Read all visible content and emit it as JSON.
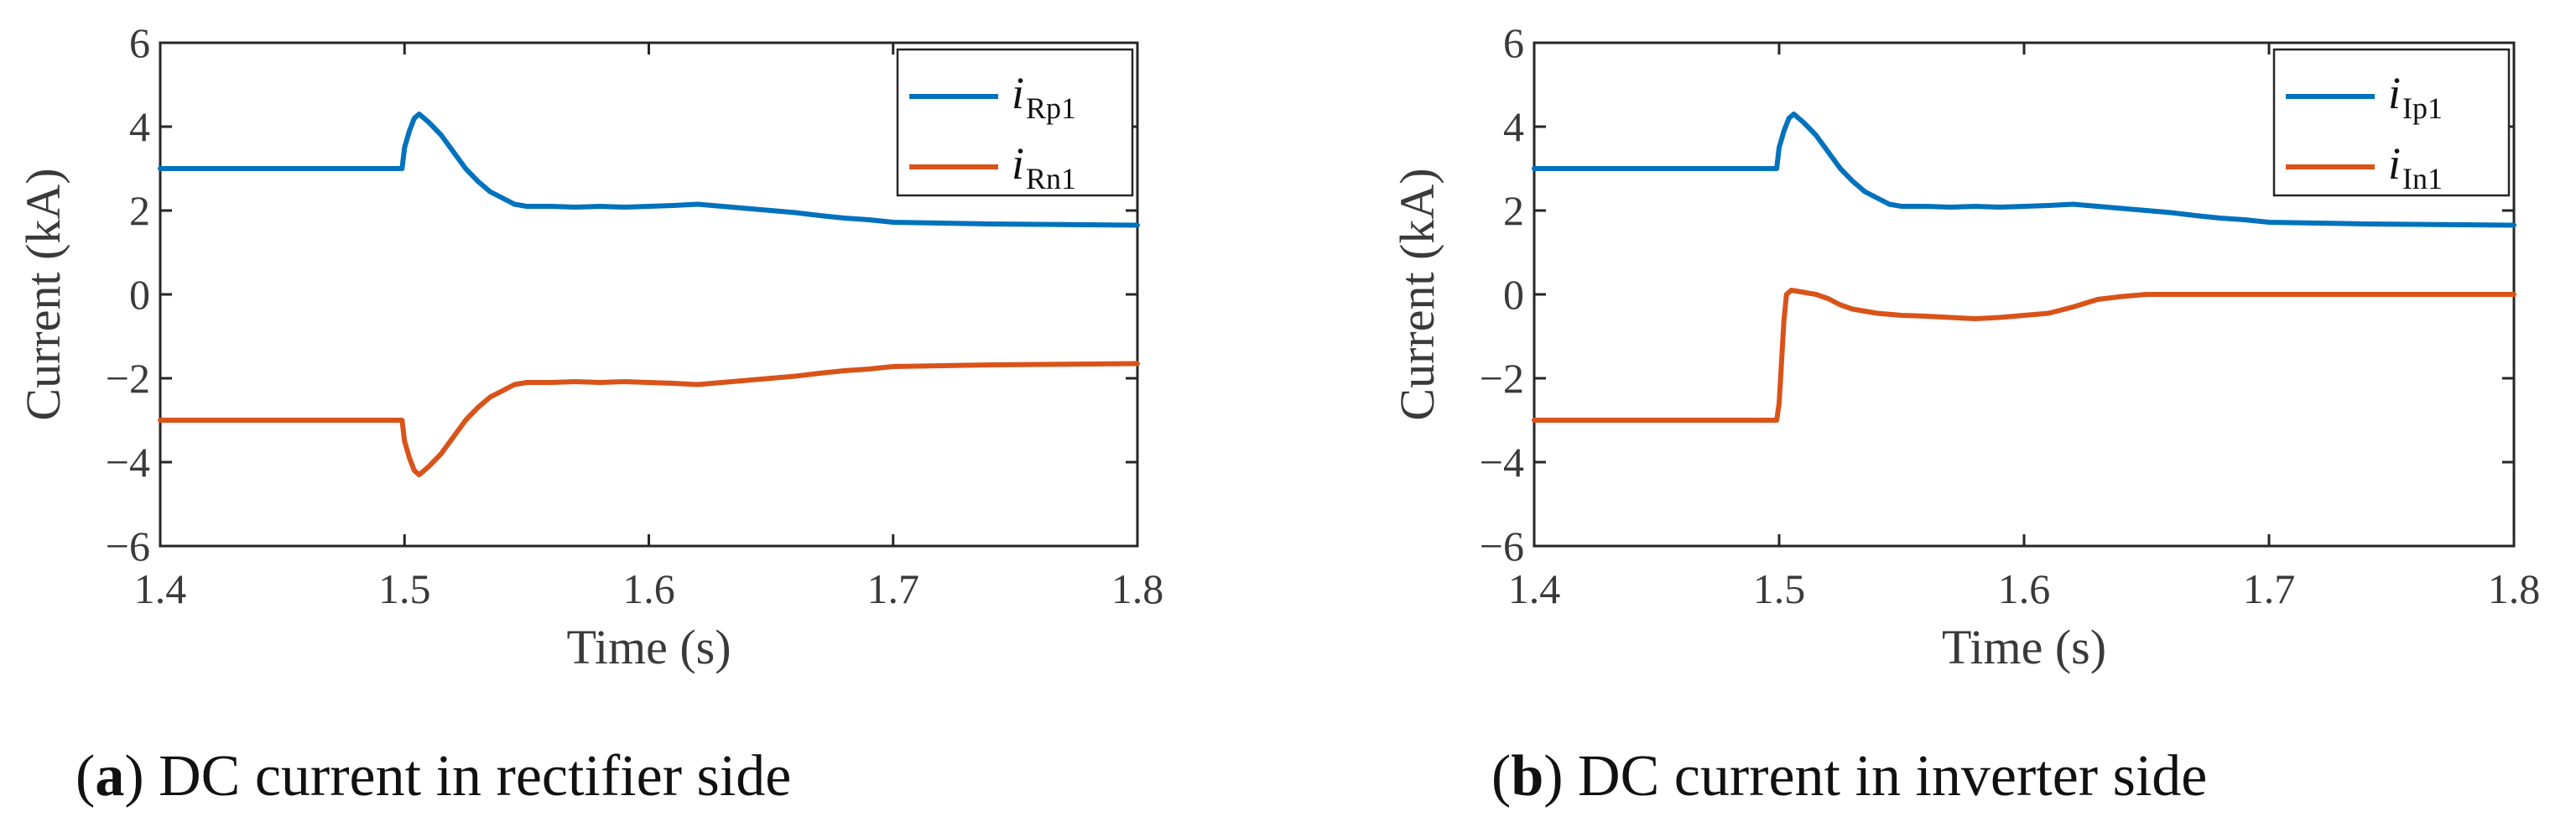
{
  "chart_data": [
    {
      "type": "line",
      "caption_letter": "a",
      "caption_text": ") DC current in rectifier side",
      "caption_open": "(",
      "xlabel": "Time (s)",
      "ylabel": "Current (kA)",
      "xlim": [
        1.4,
        1.8
      ],
      "ylim": [
        -6,
        6
      ],
      "xticks": [
        1.4,
        1.5,
        1.6,
        1.7,
        1.8
      ],
      "yticks": [
        -6,
        -4,
        -2,
        0,
        2,
        4,
        6
      ],
      "legend_position": "top-right",
      "series": [
        {
          "name": "i",
          "name_sub": "Rp1",
          "color": "#0072BD",
          "x": [
            1.4,
            1.499,
            1.5,
            1.502,
            1.504,
            1.506,
            1.508,
            1.51,
            1.515,
            1.52,
            1.525,
            1.53,
            1.535,
            1.54,
            1.545,
            1.55,
            1.56,
            1.57,
            1.58,
            1.59,
            1.6,
            1.61,
            1.62,
            1.63,
            1.64,
            1.65,
            1.66,
            1.67,
            1.68,
            1.69,
            1.7,
            1.72,
            1.74,
            1.76,
            1.78,
            1.8
          ],
          "y": [
            3.0,
            3.0,
            3.5,
            3.9,
            4.2,
            4.3,
            4.2,
            4.1,
            3.8,
            3.4,
            3.0,
            2.7,
            2.45,
            2.3,
            2.15,
            2.1,
            2.1,
            2.08,
            2.1,
            2.08,
            2.1,
            2.12,
            2.15,
            2.1,
            2.05,
            2.0,
            1.95,
            1.88,
            1.82,
            1.78,
            1.72,
            1.7,
            1.68,
            1.67,
            1.66,
            1.65
          ]
        },
        {
          "name": "i",
          "name_sub": "Rn1",
          "color": "#D95319",
          "x": [
            1.4,
            1.499,
            1.5,
            1.502,
            1.504,
            1.506,
            1.508,
            1.51,
            1.515,
            1.52,
            1.525,
            1.53,
            1.535,
            1.54,
            1.545,
            1.55,
            1.56,
            1.57,
            1.58,
            1.59,
            1.6,
            1.61,
            1.62,
            1.63,
            1.64,
            1.65,
            1.66,
            1.67,
            1.68,
            1.69,
            1.7,
            1.72,
            1.74,
            1.76,
            1.78,
            1.8
          ],
          "y": [
            -3.0,
            -3.0,
            -3.5,
            -3.9,
            -4.2,
            -4.3,
            -4.2,
            -4.1,
            -3.8,
            -3.4,
            -3.0,
            -2.7,
            -2.45,
            -2.3,
            -2.15,
            -2.1,
            -2.1,
            -2.08,
            -2.1,
            -2.08,
            -2.1,
            -2.12,
            -2.15,
            -2.1,
            -2.05,
            -2.0,
            -1.95,
            -1.88,
            -1.82,
            -1.78,
            -1.72,
            -1.7,
            -1.68,
            -1.67,
            -1.66,
            -1.65
          ]
        }
      ]
    },
    {
      "type": "line",
      "caption_letter": "b",
      "caption_text": ") DC current in inverter side",
      "caption_open": "(",
      "xlabel": "Time (s)",
      "ylabel": "Current (kA)",
      "xlim": [
        1.4,
        1.8
      ],
      "ylim": [
        -6,
        6
      ],
      "xticks": [
        1.4,
        1.5,
        1.6,
        1.7,
        1.8
      ],
      "yticks": [
        -6,
        -4,
        -2,
        0,
        2,
        4,
        6
      ],
      "legend_position": "top-right",
      "series": [
        {
          "name": "i",
          "name_sub": "Ip1",
          "color": "#0072BD",
          "x": [
            1.4,
            1.499,
            1.5,
            1.502,
            1.504,
            1.506,
            1.508,
            1.51,
            1.515,
            1.52,
            1.525,
            1.53,
            1.535,
            1.54,
            1.545,
            1.55,
            1.56,
            1.57,
            1.58,
            1.59,
            1.6,
            1.61,
            1.62,
            1.63,
            1.64,
            1.65,
            1.66,
            1.67,
            1.68,
            1.69,
            1.7,
            1.72,
            1.74,
            1.76,
            1.78,
            1.8
          ],
          "y": [
            3.0,
            3.0,
            3.5,
            3.9,
            4.2,
            4.3,
            4.2,
            4.1,
            3.8,
            3.4,
            3.0,
            2.7,
            2.45,
            2.3,
            2.15,
            2.1,
            2.1,
            2.08,
            2.1,
            2.08,
            2.1,
            2.12,
            2.15,
            2.1,
            2.05,
            2.0,
            1.95,
            1.88,
            1.82,
            1.78,
            1.72,
            1.7,
            1.68,
            1.67,
            1.66,
            1.65
          ]
        },
        {
          "name": "i",
          "name_sub": "In1",
          "color": "#D95319",
          "x": [
            1.4,
            1.499,
            1.5,
            1.501,
            1.502,
            1.503,
            1.505,
            1.51,
            1.515,
            1.52,
            1.525,
            1.53,
            1.54,
            1.55,
            1.56,
            1.57,
            1.58,
            1.59,
            1.6,
            1.61,
            1.62,
            1.63,
            1.64,
            1.65,
            1.66,
            1.68,
            1.7,
            1.72,
            1.74,
            1.76,
            1.78,
            1.8
          ],
          "y": [
            -3.0,
            -3.0,
            -2.6,
            -1.6,
            -0.6,
            0.0,
            0.1,
            0.05,
            0.0,
            -0.1,
            -0.25,
            -0.35,
            -0.45,
            -0.5,
            -0.52,
            -0.55,
            -0.58,
            -0.55,
            -0.5,
            -0.45,
            -0.3,
            -0.12,
            -0.05,
            0.0,
            0.0,
            0.0,
            0.0,
            0.0,
            0.0,
            0.0,
            0.0,
            0.0
          ]
        }
      ]
    }
  ]
}
